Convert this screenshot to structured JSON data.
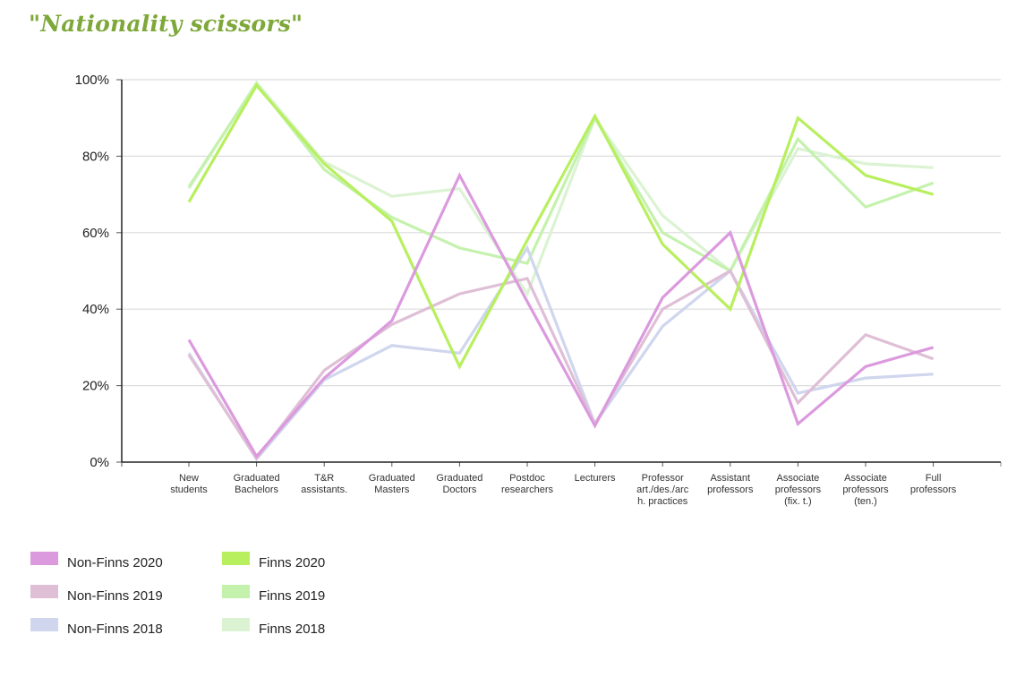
{
  "title": "\"Nationality scissors\"",
  "chart_data": {
    "type": "line",
    "title": "\"Nationality scissors\"",
    "xlabel": "",
    "ylabel": "",
    "ylim": [
      0,
      100
    ],
    "y_ticks": [
      "0%",
      "20%",
      "40%",
      "60%",
      "80%",
      "100%"
    ],
    "y_tick_values": [
      0,
      20,
      40,
      60,
      80,
      100
    ],
    "grid": true,
    "legend_position": "bottom-left",
    "categories": [
      [
        "New",
        "students"
      ],
      [
        "Graduated",
        "Bachelors"
      ],
      [
        "T&R",
        "assistants."
      ],
      [
        "Graduated",
        "Masters"
      ],
      [
        "Graduated",
        "Doctors"
      ],
      [
        "Postdoc",
        "researchers"
      ],
      [
        "Lecturers"
      ],
      [
        "Professor",
        "art./des./arc",
        "h. practices"
      ],
      [
        "Assistant",
        "professors"
      ],
      [
        "Associate",
        "professors",
        "(fix. t.)"
      ],
      [
        "Associate",
        "professors",
        "(ten.)"
      ],
      [
        "Full",
        "professors"
      ]
    ],
    "series": [
      {
        "name": "Finns 2018",
        "color": "#dbf3d3",
        "values": [
          71.5,
          99.2,
          78.5,
          69.5,
          71.5,
          44,
          90,
          64.5,
          50,
          82,
          78,
          77
        ]
      },
      {
        "name": "Finns 2019",
        "color": "#c4f2ad",
        "values": [
          72,
          99,
          76.5,
          64,
          56,
          52,
          90,
          60,
          50,
          84.5,
          66.7,
          73
        ]
      },
      {
        "name": "Non-Finns 2018",
        "color": "#cfd6ee",
        "values": [
          28.5,
          0.8,
          21.5,
          30.5,
          28.5,
          56,
          10,
          35.5,
          50,
          18,
          22,
          23
        ]
      },
      {
        "name": "Non-Finns 2019",
        "color": "#dfbfd6",
        "values": [
          28,
          1,
          24,
          36,
          44,
          48,
          10,
          40,
          50,
          15.5,
          33.3,
          27
        ]
      },
      {
        "name": "Finns 2020",
        "color": "#b8ef5f",
        "values": [
          68,
          98.5,
          78,
          63,
          25,
          58,
          90.5,
          57,
          40,
          90,
          75,
          70
        ]
      },
      {
        "name": "Non-Finns 2020",
        "color": "#dc9ade",
        "values": [
          32,
          1.5,
          22,
          37,
          75,
          42,
          9.5,
          43,
          60,
          10,
          25,
          30
        ]
      }
    ]
  },
  "legend": [
    {
      "label": "Non-Finns 2020",
      "color": "#dc9ade"
    },
    {
      "label": "Finns 2020",
      "color": "#b8ef5f"
    },
    {
      "label": "Non-Finns 2019",
      "color": "#dfbfd6"
    },
    {
      "label": "Finns 2019",
      "color": "#c4f2ad"
    },
    {
      "label": "Non-Finns 2018",
      "color": "#cfd6ee"
    },
    {
      "label": "Finns 2018",
      "color": "#dbf3d3"
    }
  ]
}
